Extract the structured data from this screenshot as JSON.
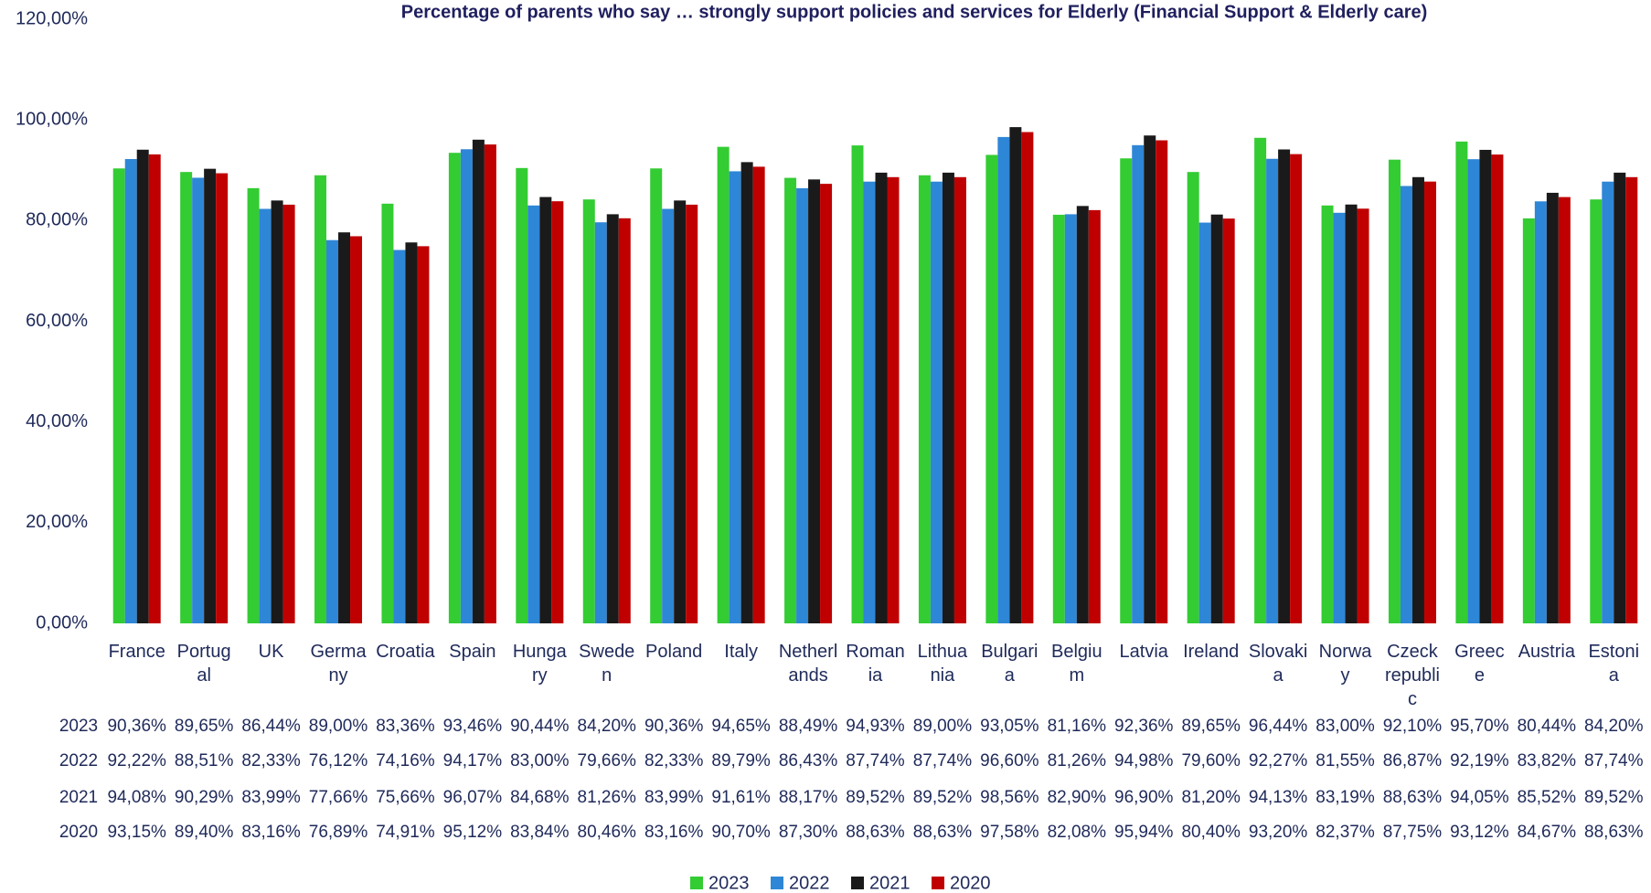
{
  "chart_data": {
    "type": "bar",
    "title": "Percentage of parents who say … strongly support policies and services for Elderly (Financial Support & Elderly care)",
    "categories": [
      "France",
      "Portugal",
      "UK",
      "Germany",
      "Croatia",
      "Spain",
      "Hungary",
      "Sweden",
      "Poland",
      "Italy",
      "Netherlands",
      "Romania",
      "Lithuania",
      "Bulgaria",
      "Belgium",
      "Latvia",
      "Ireland",
      "Slovakia",
      "Norway",
      "Czeck republic",
      "Greece",
      "Austria",
      "Estonia"
    ],
    "series": [
      {
        "name": "2023",
        "color": "#33cc33",
        "values": [
          90.36,
          89.65,
          86.44,
          89.0,
          83.36,
          93.46,
          90.44,
          84.2,
          90.36,
          94.65,
          88.49,
          94.93,
          89.0,
          93.05,
          81.16,
          92.36,
          89.65,
          96.44,
          83.0,
          92.1,
          95.7,
          80.44,
          84.2
        ],
        "value_labels": [
          "90,36%",
          "89,65%",
          "86,44%",
          "89,00%",
          "83,36%",
          "93,46%",
          "90,44%",
          "84,20%",
          "90,36%",
          "94,65%",
          "88,49%",
          "94,93%",
          "89,00%",
          "93,05%",
          "81,16%",
          "92,36%",
          "89,65%",
          "96,44%",
          "83,00%",
          "92,10%",
          "95,70%",
          "80,44%",
          "84,20%"
        ]
      },
      {
        "name": "2022",
        "color": "#2e86d6",
        "values": [
          92.22,
          88.51,
          82.33,
          76.12,
          74.16,
          94.17,
          83.0,
          79.66,
          82.33,
          89.79,
          86.43,
          87.74,
          87.74,
          96.6,
          81.26,
          94.98,
          79.6,
          92.27,
          81.55,
          86.87,
          92.19,
          83.82,
          87.74
        ],
        "value_labels": [
          "92,22%",
          "88,51%",
          "82,33%",
          "76,12%",
          "74,16%",
          "94,17%",
          "83,00%",
          "79,66%",
          "82,33%",
          "89,79%",
          "86,43%",
          "87,74%",
          "87,74%",
          "96,60%",
          "81,26%",
          "94,98%",
          "79,60%",
          "92,27%",
          "81,55%",
          "86,87%",
          "92,19%",
          "83,82%",
          "87,74%"
        ]
      },
      {
        "name": "2021",
        "color": "#1a1a1a",
        "values": [
          94.08,
          90.29,
          83.99,
          77.66,
          75.66,
          96.07,
          84.68,
          81.26,
          83.99,
          91.61,
          88.17,
          89.52,
          89.52,
          98.56,
          82.9,
          96.9,
          81.2,
          94.13,
          83.19,
          88.63,
          94.05,
          85.52,
          89.52
        ],
        "value_labels": [
          "94,08%",
          "90,29%",
          "83,99%",
          "77,66%",
          "75,66%",
          "96,07%",
          "84,68%",
          "81,26%",
          "83,99%",
          "91,61%",
          "88,17%",
          "89,52%",
          "89,52%",
          "98,56%",
          "82,90%",
          "96,90%",
          "81,20%",
          "94,13%",
          "83,19%",
          "88,63%",
          "94,05%",
          "85,52%",
          "89,52%"
        ]
      },
      {
        "name": "2020",
        "color": "#c00000",
        "values": [
          93.15,
          89.4,
          83.16,
          76.89,
          74.91,
          95.12,
          83.84,
          80.46,
          83.16,
          90.7,
          87.3,
          88.63,
          88.63,
          97.58,
          82.08,
          95.94,
          80.4,
          93.2,
          82.37,
          87.75,
          93.12,
          84.67,
          88.63
        ],
        "value_labels": [
          "93,15%",
          "89,40%",
          "83,16%",
          "76,89%",
          "74,91%",
          "95,12%",
          "83,84%",
          "80,46%",
          "83,16%",
          "90,70%",
          "87,30%",
          "88,63%",
          "88,63%",
          "97,58%",
          "82,08%",
          "95,94%",
          "80,40%",
          "93,20%",
          "82,37%",
          "87,75%",
          "93,12%",
          "84,67%",
          "88,63%"
        ]
      }
    ],
    "ylim": [
      0,
      120
    ],
    "yticks": [
      {
        "value": 0,
        "label": "0,00%"
      },
      {
        "value": 20,
        "label": "20,00%"
      },
      {
        "value": 40,
        "label": "40,00%"
      },
      {
        "value": 60,
        "label": "60,00%"
      },
      {
        "value": 80,
        "label": "80,00%"
      },
      {
        "value": 100,
        "label": "100,00%"
      },
      {
        "value": 120,
        "label": "120,00%"
      }
    ],
    "grid": false,
    "legend": "bottom"
  }
}
